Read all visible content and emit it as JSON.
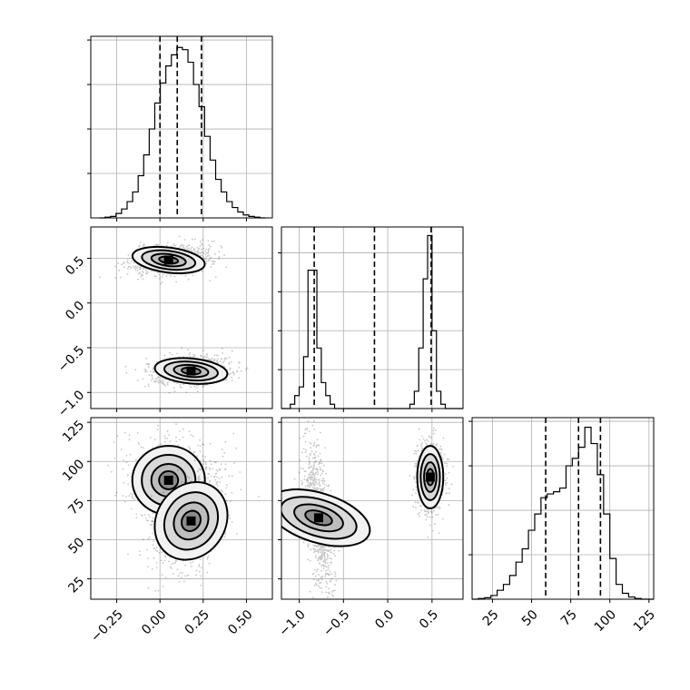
{
  "chart_data": [
    {
      "type": "histogram",
      "panel": "hist-param1",
      "bin_edges": [
        -0.35,
        -0.318,
        -0.286,
        -0.254,
        -0.222,
        -0.19,
        -0.158,
        -0.126,
        -0.094,
        -0.062,
        -0.03,
        0.002,
        0.034,
        0.066,
        0.098,
        0.13,
        0.162,
        0.194,
        0.226,
        0.258,
        0.29,
        0.322,
        0.354,
        0.386,
        0.418,
        0.45,
        0.482,
        0.514,
        0.546,
        0.578,
        0.61
      ],
      "counts": [
        0,
        1,
        2,
        6,
        12,
        22,
        35,
        57,
        85,
        120,
        155,
        182,
        205,
        220,
        230,
        227,
        210,
        180,
        150,
        110,
        78,
        52,
        35,
        22,
        14,
        8,
        4,
        2,
        1,
        0
      ],
      "quantiles": [
        0.0,
        0.1,
        0.24
      ],
      "xlim": [
        -0.4,
        0.65
      ],
      "ylim": [
        0,
        245
      ],
      "grid": true
    },
    {
      "type": "scatter",
      "panel": "scatter-param1-param2",
      "xlim": [
        -0.4,
        0.65
      ],
      "ylim": [
        -1.18,
        0.85
      ],
      "yticks": [
        -1.0,
        -0.5,
        0.0,
        0.5
      ],
      "ytick_labels": [
        "−1.0",
        "−0.5",
        "0.0",
        "0.5"
      ],
      "clusters": [
        {
          "center": [
            0.05,
            0.48
          ],
          "spread": [
            0.1,
            0.07
          ],
          "tilt": -0.35
        },
        {
          "center": [
            0.18,
            -0.76
          ],
          "spread": [
            0.1,
            0.07
          ],
          "tilt": -0.25
        }
      ],
      "contour_levels": 4,
      "grid": true
    },
    {
      "type": "histogram",
      "panel": "hist-param2",
      "bin_edges": [
        -1.2,
        -1.15,
        -1.1,
        -1.05,
        -1.0,
        -0.95,
        -0.9,
        -0.85,
        -0.8,
        -0.75,
        -0.7,
        -0.65,
        -0.6,
        -0.55,
        -0.5,
        -0.45,
        -0.4,
        -0.35,
        -0.3,
        -0.25,
        -0.2,
        -0.15,
        -0.1,
        -0.05,
        0.0,
        0.05,
        0.1,
        0.15,
        0.2,
        0.25,
        0.3,
        0.35,
        0.4,
        0.45,
        0.5,
        0.55,
        0.6,
        0.65,
        0.7,
        0.75,
        0.8,
        0.85
      ],
      "counts": [
        0,
        0,
        5,
        15,
        25,
        60,
        160,
        160,
        70,
        30,
        15,
        5,
        0,
        0,
        0,
        0,
        0,
        0,
        0,
        0,
        0,
        0,
        0,
        0,
        0,
        0,
        0,
        0,
        0,
        5,
        20,
        70,
        150,
        200,
        90,
        20,
        5,
        0,
        0,
        0,
        0
      ],
      "quantiles": [
        -0.83,
        -0.15,
        0.49
      ],
      "xlim": [
        -1.2,
        0.85
      ],
      "ylim": [
        0,
        210
      ],
      "grid": true
    },
    {
      "type": "scatter",
      "panel": "scatter-param1-param3",
      "xlim": [
        -0.4,
        0.65
      ],
      "ylim": [
        12,
        128
      ],
      "xticks": [
        -0.25,
        0.0,
        0.25,
        0.5
      ],
      "xtick_labels": [
        "−0.25",
        "0.00",
        "0.25",
        "0.50"
      ],
      "yticks": [
        25,
        50,
        75,
        100,
        125
      ],
      "ytick_labels": [
        "25",
        "50",
        "75",
        "100",
        "125"
      ],
      "clusters": [
        {
          "center": [
            0.05,
            88
          ],
          "spread": [
            0.1,
            11
          ],
          "tilt": 0.0
        },
        {
          "center": [
            0.18,
            62
          ],
          "spread": [
            0.09,
            13
          ],
          "tilt": -0.5
        }
      ],
      "contour_levels": 4,
      "grid": true
    },
    {
      "type": "scatter",
      "panel": "scatter-param2-param3",
      "xlim": [
        -1.2,
        0.85
      ],
      "ylim": [
        12,
        128
      ],
      "xticks": [
        -1.0,
        -0.5,
        0.0,
        0.5
      ],
      "xtick_labels": [
        "−1.0",
        "−0.5",
        "0.0",
        "0.5"
      ],
      "clusters": [
        {
          "center": [
            -0.78,
            64
          ],
          "spread": [
            0.07,
            17
          ],
          "tilt": 0.75
        },
        {
          "center": [
            0.48,
            90
          ],
          "spread": [
            0.07,
            10
          ],
          "tilt": 0.0
        }
      ],
      "contour_levels": 4,
      "grid": true
    },
    {
      "type": "histogram",
      "panel": "hist-param3",
      "bin_edges": [
        12,
        16,
        20,
        24,
        28,
        32,
        36,
        40,
        44,
        48,
        52,
        56,
        60,
        64,
        68,
        72,
        76,
        80,
        84,
        88,
        92,
        96,
        100,
        104,
        108,
        112,
        116,
        120,
        124,
        128
      ],
      "counts": [
        0,
        1,
        2,
        5,
        12,
        20,
        32,
        50,
        68,
        93,
        115,
        137,
        142,
        145,
        150,
        180,
        190,
        205,
        232,
        210,
        168,
        115,
        55,
        20,
        8,
        3,
        1,
        0,
        0
      ],
      "quantiles": [
        59,
        80,
        94
      ],
      "xlim": [
        12,
        128
      ],
      "ylim": [
        0,
        245
      ],
      "xticks": [
        25,
        50,
        75,
        100,
        125
      ],
      "xtick_labels": [
        "25",
        "50",
        "75",
        "100",
        "125"
      ],
      "grid": true
    }
  ]
}
